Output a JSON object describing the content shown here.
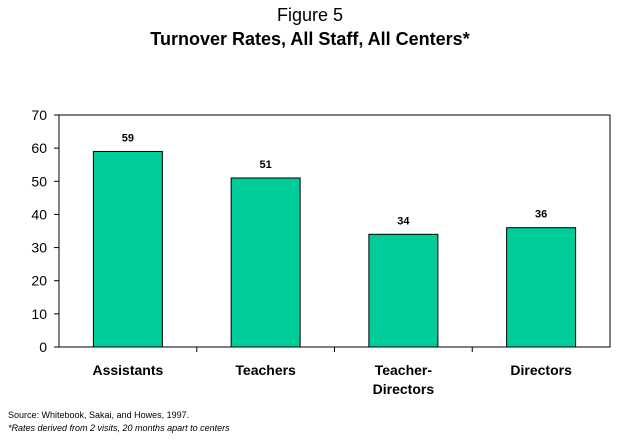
{
  "header": {
    "figure_label": "Figure 5"
  },
  "chart_data": {
    "type": "bar",
    "title": "Turnover Rates, All Staff, All Centers*",
    "categories": [
      "Assistants",
      "Teachers",
      "Teacher-Directors",
      "Directors"
    ],
    "category_lines": [
      [
        "Assistants"
      ],
      [
        "Teachers"
      ],
      [
        "Teacher-",
        "Directors"
      ],
      [
        "Directors"
      ]
    ],
    "values": [
      59,
      51,
      34,
      36
    ],
    "data_labels": [
      "59",
      "51",
      "34",
      "36"
    ],
    "xlabel": "",
    "ylabel": "",
    "ylim": [
      0,
      70
    ],
    "yticks": [
      0,
      10,
      20,
      30,
      40,
      50,
      60,
      70
    ],
    "grid": false,
    "legend": "none",
    "bar_color": "#00CC99",
    "bar_outline": "#000000"
  },
  "footer": {
    "source": "Source: Whitebook, Sakai, and Howes, 1997.",
    "note": "*Rates derived from 2 visits, 20 months apart to centers"
  }
}
